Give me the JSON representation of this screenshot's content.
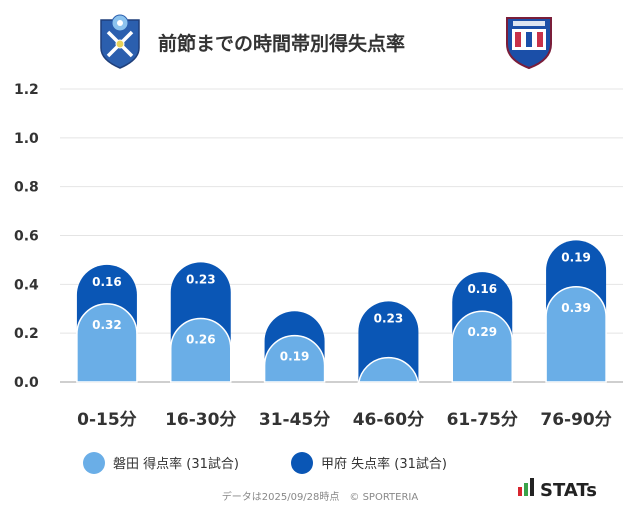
{
  "chart_data": {
    "type": "bar",
    "title": "前節までの時間帯別得失点率",
    "categories": [
      "0-15分",
      "16-30分",
      "31-45分",
      "46-60分",
      "61-75分",
      "76-90分"
    ],
    "series": [
      {
        "name": "磐田 得点率 (31試合)",
        "values": [
          0.32,
          0.26,
          0.19,
          0.1,
          0.29,
          0.39
        ],
        "labels": [
          "0.32",
          "0.26",
          "0.19",
          "",
          "0.29",
          "0.39"
        ]
      },
      {
        "name": "甲府 失点率 (31試合)",
        "values": [
          0.16,
          0.23,
          0.1,
          0.23,
          0.16,
          0.19
        ],
        "labels": [
          "0.16",
          "0.23",
          "",
          "0.23",
          "0.16",
          "0.19"
        ]
      }
    ],
    "stacked": true,
    "ylim": [
      0,
      1.2
    ],
    "yticks": [
      "0.0",
      "0.2",
      "0.4",
      "0.6",
      "0.8",
      "1.0",
      "1.2"
    ],
    "grid": true,
    "legend": "bottom"
  },
  "colors": {
    "series1": "#6aaee7",
    "series2": "#0a56b5",
    "grid": "#e4e4e4",
    "axis": "#cfcfcf"
  },
  "icons": {
    "left_logo": "jubilo-iwata-crest-icon",
    "right_logo": "ventforet-kofu-crest-icon",
    "brand_logo": "stats-logo-icon"
  },
  "footer": {
    "note": "データは2025/09/28時点　© SPORTERIA"
  },
  "brand": {
    "name": "STATs"
  }
}
